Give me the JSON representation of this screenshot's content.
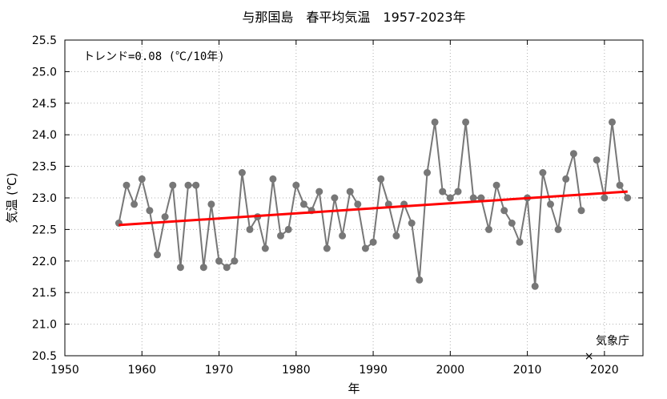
{
  "chart_data": {
    "type": "line",
    "title": "与那国島　春平均気温　1957-2023年",
    "xlabel": "年",
    "ylabel": "気温 (℃)",
    "xlim": [
      1950,
      2025
    ],
    "ylim": [
      20.5,
      25.5
    ],
    "x_ticks": [
      "1950",
      "1960",
      "1970",
      "1980",
      "1990",
      "2000",
      "2010",
      "2020"
    ],
    "y_ticks": [
      "20.5",
      "21.0",
      "21.5",
      "22.0",
      "22.5",
      "23.0",
      "23.5",
      "24.0",
      "24.5",
      "25.0",
      "25.5"
    ],
    "grid": true,
    "annotation": "トレンド=0.08 (℃/10年)",
    "credit": "気象庁",
    "series": [
      {
        "color": "#777777",
        "x": [
          1957,
          1958,
          1959,
          1960,
          1961,
          1962,
          1963,
          1964,
          1965,
          1966,
          1967,
          1968,
          1969,
          1970,
          1971,
          1972,
          1973,
          1974,
          1975,
          1976,
          1977,
          1978,
          1979,
          1980,
          1981,
          1982,
          1983,
          1984,
          1985,
          1986,
          1987,
          1988,
          1989,
          1990,
          1991,
          1992,
          1993,
          1994,
          1995,
          1996,
          1997,
          1998,
          1999,
          2000,
          2001,
          2002,
          2003,
          2004,
          2005,
          2006,
          2007,
          2008,
          2009,
          2010,
          2011,
          2012,
          2013,
          2014,
          2015,
          2016,
          2017,
          2018,
          2019,
          2020,
          2021,
          2022,
          2023
        ],
        "y": [
          22.6,
          23.2,
          22.9,
          23.3,
          22.8,
          22.1,
          22.7,
          23.2,
          21.9,
          23.2,
          23.2,
          21.9,
          22.9,
          22.0,
          21.9,
          22.0,
          23.4,
          22.5,
          22.7,
          22.2,
          23.3,
          22.4,
          22.5,
          23.2,
          22.9,
          22.8,
          23.1,
          22.2,
          23.0,
          22.4,
          23.1,
          22.9,
          22.2,
          22.3,
          23.3,
          22.9,
          22.4,
          22.9,
          22.6,
          21.7,
          23.4,
          24.2,
          23.1,
          23.0,
          23.1,
          24.2,
          23.0,
          23.0,
          22.5,
          23.2,
          22.8,
          22.6,
          22.3,
          23.0,
          21.6,
          23.4,
          22.9,
          22.5,
          23.3,
          23.7,
          22.8,
          null,
          23.6,
          23.0,
          24.2,
          23.2,
          23.0
        ]
      }
    ],
    "trend": {
      "color": "#ff0000",
      "x": [
        1957,
        2023
      ],
      "y": [
        22.57,
        23.1
      ]
    },
    "missing_marker": {
      "x": 2018,
      "y": 20.5,
      "symbol": "×"
    }
  }
}
